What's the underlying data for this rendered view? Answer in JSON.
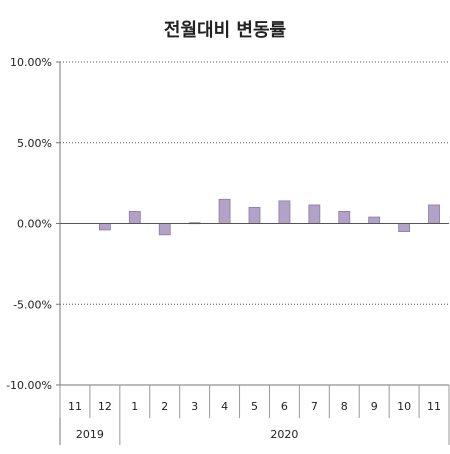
{
  "chart_data": {
    "type": "bar",
    "title": "전월대비 변동률",
    "xlabel": "",
    "ylabel": "",
    "categories": [
      "11",
      "12",
      "1",
      "2",
      "3",
      "4",
      "5",
      "6",
      "7",
      "8",
      "9",
      "10",
      "11"
    ],
    "year_groups": [
      {
        "label": "2019",
        "count": 2
      },
      {
        "label": "2020",
        "count": 11
      }
    ],
    "values": [
      0.0,
      -0.4,
      0.75,
      -0.7,
      0.05,
      1.5,
      1.0,
      1.4,
      1.15,
      0.75,
      0.4,
      -0.5,
      1.15
    ],
    "ylim": [
      -10,
      10
    ],
    "yticks": [
      10,
      5,
      0,
      -5,
      -10
    ],
    "ytick_labels": [
      "10.00%",
      "5.00%",
      "0.00%",
      "-5.00%",
      "-10.00%"
    ],
    "grid": true,
    "bar_color": "#b3a2c7",
    "bar_edge_color": "#8a7aa8"
  }
}
